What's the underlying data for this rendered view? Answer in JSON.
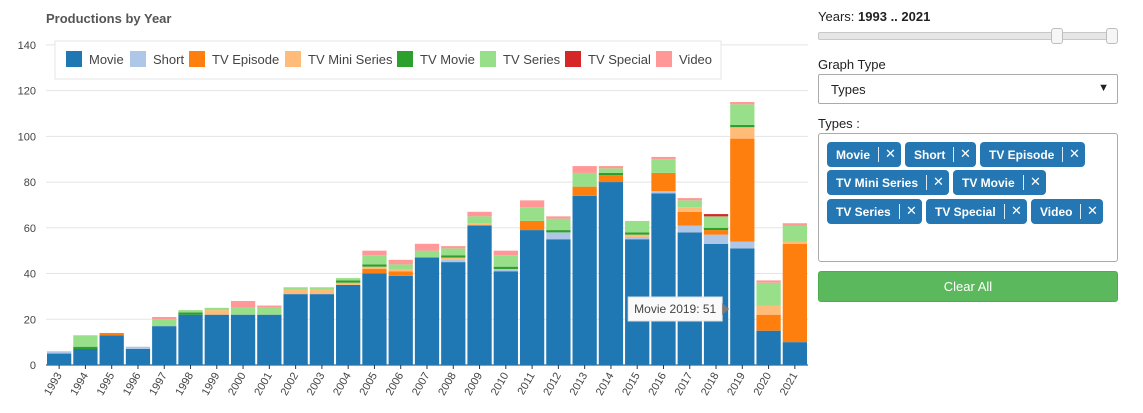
{
  "chart_data": {
    "type": "bar",
    "stacked": true,
    "title": "Productions by Year",
    "xlabel": "",
    "ylabel": "",
    "ylim": [
      0,
      150
    ],
    "y_ticks": [
      0,
      20,
      40,
      60,
      80,
      100,
      120,
      140
    ],
    "grid": "horizontal",
    "legend_position": "top-left",
    "categories": [
      "1993",
      "1994",
      "1995",
      "1996",
      "1997",
      "1998",
      "1999",
      "2000",
      "2001",
      "2002",
      "2003",
      "2004",
      "2005",
      "2006",
      "2007",
      "2008",
      "2009",
      "2010",
      "2011",
      "2012",
      "2013",
      "2014",
      "2015",
      "2016",
      "2017",
      "2018",
      "2019",
      "2020",
      "2021"
    ],
    "series": [
      {
        "name": "Movie",
        "color": "#1f77b4",
        "values": [
          5,
          7,
          13,
          7,
          17,
          22,
          22,
          22,
          22,
          31,
          31,
          35,
          40,
          39,
          47,
          45,
          61,
          41,
          59,
          55,
          74,
          80,
          55,
          75,
          58,
          53,
          51,
          15,
          10
        ]
      },
      {
        "name": "Short",
        "color": "#aec7e8",
        "values": [
          1,
          0,
          0,
          1,
          0,
          0,
          0,
          0,
          0,
          0,
          0,
          0,
          0,
          0,
          0,
          1,
          0,
          1,
          0,
          3,
          0,
          0,
          1,
          1,
          3,
          4,
          3,
          0,
          0
        ]
      },
      {
        "name": "TV Episode",
        "color": "#ff7f0e",
        "values": [
          0,
          0,
          1,
          0,
          0,
          0,
          0,
          0,
          0,
          0,
          0,
          0,
          2,
          2,
          0,
          0,
          0,
          0,
          4,
          0,
          4,
          3,
          0,
          8,
          6,
          2,
          45,
          7,
          43
        ]
      },
      {
        "name": "TV Mini Series",
        "color": "#ffbb78",
        "values": [
          0,
          0,
          0,
          0,
          0,
          0,
          2,
          0,
          0,
          2,
          2,
          1,
          1,
          1,
          0,
          1,
          1,
          0,
          0,
          0,
          0,
          0,
          1,
          0,
          2,
          0,
          5,
          4,
          1
        ]
      },
      {
        "name": "TV Movie",
        "color": "#2ca02c",
        "values": [
          0,
          1,
          0,
          0,
          0,
          1,
          0,
          0,
          0,
          0,
          0,
          1,
          1,
          0,
          0,
          1,
          0,
          1,
          0,
          1,
          0,
          1,
          1,
          0,
          0,
          1,
          1,
          0,
          0
        ]
      },
      {
        "name": "TV Series",
        "color": "#98df8a",
        "values": [
          0,
          5,
          0,
          0,
          3,
          1,
          1,
          3,
          3,
          1,
          1,
          1,
          4,
          2,
          3,
          3,
          3,
          5,
          6,
          5,
          6,
          2,
          5,
          6,
          3,
          5,
          9,
          10,
          7
        ]
      },
      {
        "name": "TV Special",
        "color": "#d62728",
        "values": [
          0,
          0,
          0,
          0,
          0,
          0,
          0,
          0,
          0,
          0,
          0,
          0,
          0,
          0,
          0,
          0,
          0,
          0,
          0,
          0,
          0,
          0,
          0,
          0,
          0,
          1,
          0,
          0,
          0
        ]
      },
      {
        "name": "Video",
        "color": "#ff9896",
        "values": [
          0,
          0,
          0,
          0,
          1,
          0,
          0,
          3,
          1,
          0,
          0,
          0,
          2,
          2,
          3,
          1,
          2,
          2,
          3,
          1,
          3,
          1,
          0,
          1,
          1,
          0,
          1,
          1,
          1
        ]
      }
    ],
    "tooltip": {
      "text": "Movie 2019: 51",
      "category": "2019",
      "series": "Movie"
    }
  },
  "panel": {
    "years_label": "Years:",
    "years_start": "1993",
    "years_sep": "..",
    "years_end": "2021",
    "slider_range": [
      1874,
      2021
    ],
    "slider_value": [
      1993,
      2021
    ],
    "graph_type_label": "Graph Type",
    "graph_type_value": "Types",
    "types_label": "Types :",
    "tags": [
      "Movie",
      "Short",
      "TV Episode",
      "TV Mini Series",
      "TV Movie",
      "TV Series",
      "TV Special",
      "Video"
    ],
    "clear_label": "Clear All",
    "remove_glyph": "✕",
    "caret_glyph": "▼"
  }
}
